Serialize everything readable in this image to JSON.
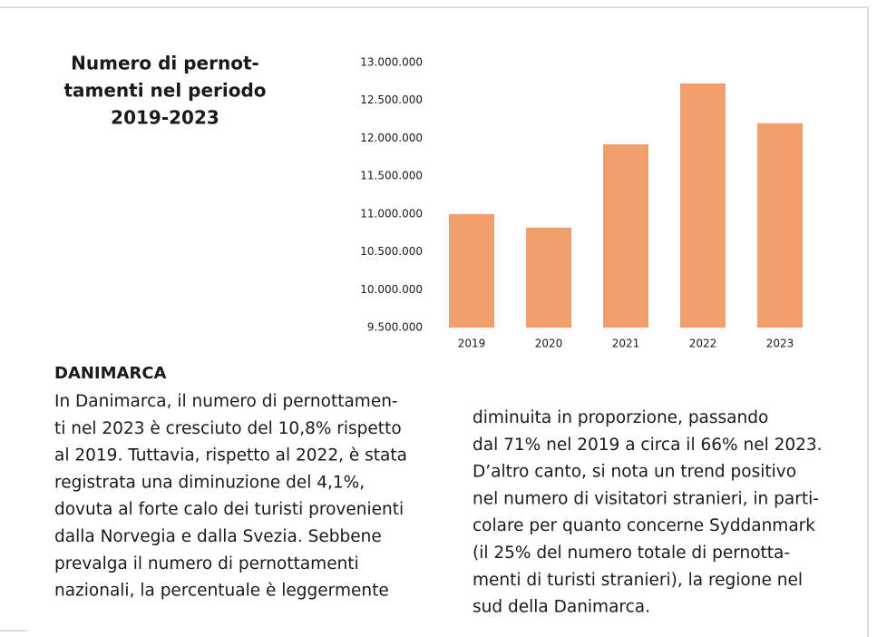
{
  "chart_data": {
    "type": "bar",
    "title": [
      "Numero di pernot-",
      "tamenti nel periodo",
      "2019-2023"
    ],
    "categories": [
      "2019",
      "2020",
      "2021",
      "2022",
      "2023"
    ],
    "values": [
      11000000,
      10820000,
      11920000,
      12725000,
      12200000
    ],
    "color": "#ef9e6c",
    "ylim": [
      9500000,
      13000000
    ],
    "yticks": [
      {
        "value": 9500000,
        "label": "9.500.000"
      },
      {
        "value": 10000000,
        "label": "10.000.000"
      },
      {
        "value": 10500000,
        "label": "10.500.000"
      },
      {
        "value": 11000000,
        "label": "11.000.000"
      },
      {
        "value": 11500000,
        "label": "11.500.000"
      },
      {
        "value": 12000000,
        "label": "12.000.000"
      },
      {
        "value": 12500000,
        "label": "12.500.000"
      },
      {
        "value": 13000000,
        "label": "13.000.000"
      }
    ],
    "grid": false
  },
  "article": {
    "heading": "DANIMARCA",
    "columns": [
      [
        "In Danimarca, il numero di pernottamen-",
        "ti nel 2023 è cresciuto del 10,8% rispetto",
        "al 2019. Tuttavia, rispetto al 2022, è stata",
        "registrata una diminuzione del 4,1%,",
        "dovuta al forte calo dei turisti provenienti",
        "dalla Norvegia e dalla Svezia. Sebbene",
        "prevalga il numero di pernottamenti",
        "nazionali, la percentuale è leggermente"
      ],
      [
        "diminuita in proporzione, passando",
        "dal 71% nel 2019 a circa il 66% nel 2023.",
        "D’altro canto, si nota un trend positivo",
        "nel numero di visitatori stranieri, in parti-",
        "colare per quanto concerne Syddanmark",
        "(il 25% del numero totale di pernotta-",
        "menti di turisti stranieri), la regione nel",
        "sud della Danimarca."
      ]
    ]
  }
}
